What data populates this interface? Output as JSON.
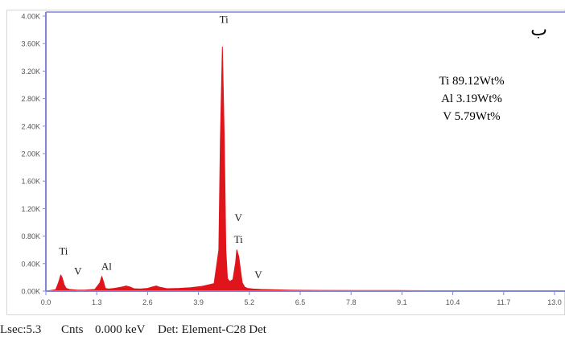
{
  "panel_label": "ب",
  "footer": {
    "lsec": "Lsec:5.3",
    "cnts": "Cnts",
    "kev": "0.000 keV",
    "det": "Det: Element-C28 Det"
  },
  "composition": [
    {
      "text": "Ti 89.12Wt%"
    },
    {
      "text": "Al 3.19Wt%"
    },
    {
      "text": "V 5.79Wt%"
    }
  ],
  "colors": {
    "spectrum": "#e0151b",
    "axis": "#7f86d6",
    "tick_text": "#555555"
  },
  "chart_data": {
    "type": "area",
    "title": "",
    "xlabel": "",
    "ylabel": "",
    "xlim": [
      0.0,
      13.0
    ],
    "ylim": [
      0,
      4000
    ],
    "x_ticks": [
      0.0,
      1.3,
      2.6,
      3.9,
      5.2,
      6.5,
      7.8,
      9.1,
      10.4,
      11.7,
      13.0
    ],
    "x_tick_labels": [
      "0.0",
      "1.3",
      "2.6",
      "3.9",
      "5.2",
      "6.5",
      "7.8",
      "9.1",
      "10.4",
      "11.7",
      "13.0"
    ],
    "y_ticks": [
      0,
      400,
      800,
      1200,
      1600,
      2000,
      2400,
      2800,
      3200,
      3600,
      4000
    ],
    "y_tick_labels": [
      "0.00K",
      "0.40K",
      "0.80K",
      "1.20K",
      "1.60K",
      "2.00K",
      "2.40K",
      "2.80K",
      "3.20K",
      "3.60K",
      "4.00K"
    ],
    "grid": false,
    "series": [
      {
        "x": [
          0.0,
          0.25,
          0.32,
          0.38,
          0.42,
          0.47,
          0.52,
          0.6,
          0.8,
          1.0,
          1.25,
          1.38,
          1.43,
          1.48,
          1.52,
          1.6,
          1.75,
          1.95,
          2.05,
          2.15,
          2.25,
          2.4,
          2.6,
          2.72,
          2.82,
          2.92,
          3.1,
          3.4,
          3.7,
          4.0,
          4.3,
          4.42,
          4.46,
          4.51,
          4.56,
          4.6,
          4.64,
          4.7,
          4.78,
          4.85,
          4.88,
          4.93,
          4.98,
          5.02,
          5.08,
          5.15,
          5.3,
          5.5,
          5.8,
          6.2,
          6.6,
          7.0,
          8.0,
          9.0,
          10.0,
          11.0,
          12.0,
          13.0
        ],
        "y": [
          0,
          20,
          120,
          235,
          190,
          90,
          40,
          25,
          15,
          15,
          25,
          120,
          215,
          120,
          40,
          30,
          40,
          60,
          75,
          60,
          35,
          30,
          40,
          60,
          75,
          55,
          35,
          40,
          50,
          70,
          110,
          600,
          2200,
          3550,
          2200,
          600,
          180,
          140,
          170,
          420,
          600,
          500,
          280,
          120,
          60,
          40,
          30,
          25,
          20,
          15,
          12,
          10,
          8,
          8,
          6,
          6,
          6,
          5
        ]
      }
    ],
    "annotations": [
      {
        "text": "Ti",
        "x": 0.45,
        "y": 530
      },
      {
        "text": "V",
        "x": 0.82,
        "y": 240
      },
      {
        "text": "Al",
        "x": 1.55,
        "y": 310
      },
      {
        "text": "Ti",
        "x": 4.55,
        "y": 3900
      },
      {
        "text": "V",
        "x": 4.92,
        "y": 1020
      },
      {
        "text": "Ti",
        "x": 4.92,
        "y": 700
      },
      {
        "text": "V",
        "x": 5.43,
        "y": 190
      }
    ]
  }
}
